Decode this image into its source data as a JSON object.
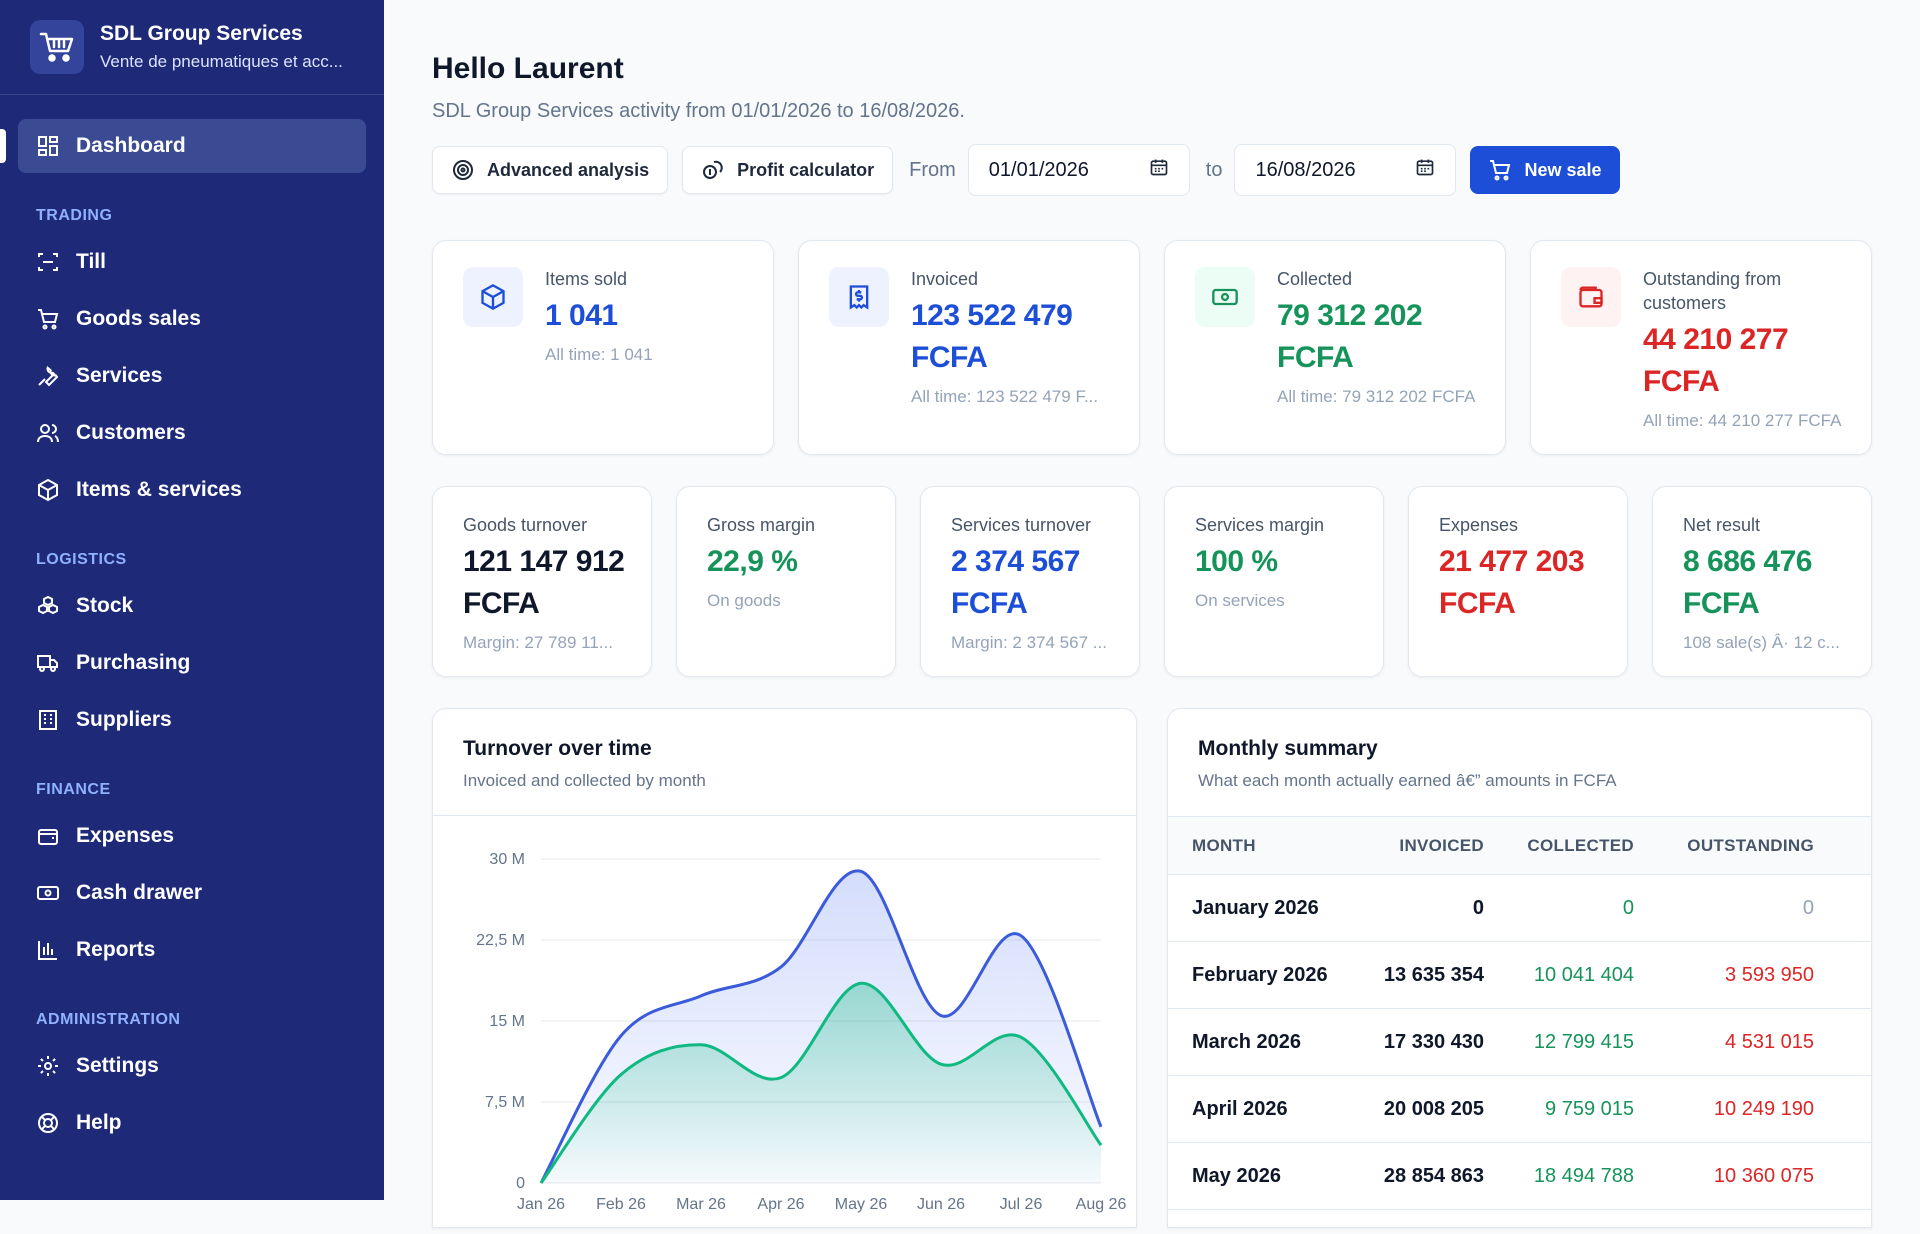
{
  "brand": {
    "name": "SDL Group Services",
    "subtitle": "Vente de pneumatiques et acc..."
  },
  "sidebar": {
    "dashboard": "Dashboard",
    "sections": {
      "trading": "TRADING",
      "logistics": "LOGISTICS",
      "finance": "FINANCE",
      "administration": "ADMINISTRATION"
    },
    "items": {
      "till": "Till",
      "goods_sales": "Goods sales",
      "services": "Services",
      "customers": "Customers",
      "items_services": "Items & services",
      "stock": "Stock",
      "purchasing": "Purchasing",
      "suppliers": "Suppliers",
      "expenses": "Expenses",
      "cash_drawer": "Cash drawer",
      "reports": "Reports",
      "settings": "Settings",
      "help": "Help"
    }
  },
  "header": {
    "greeting": "Hello Laurent",
    "subtitle": "SDL Group Services activity from 01/01/2026 to 16/08/2026."
  },
  "toolbar": {
    "advanced_analysis": "Advanced analysis",
    "profit_calculator": "Profit calculator",
    "from_label": "From",
    "from_date": "01/01/2026",
    "to_label": "to",
    "to_date": "16/08/2026",
    "new_sale": "New sale"
  },
  "kpis": {
    "items_sold": {
      "label": "Items sold",
      "value": "1 041",
      "note": "All time: 1 041"
    },
    "invoiced": {
      "label": "Invoiced",
      "value": "123 522 479",
      "unit": "FCFA",
      "note": "All time: 123 522 479 F..."
    },
    "collected": {
      "label": "Collected",
      "value": "79 312 202",
      "unit": "FCFA",
      "note": "All time: 79 312 202 FCFA"
    },
    "outstanding": {
      "label": "Outstanding from customers",
      "value": "44 210 277",
      "unit": "FCFA",
      "note": "All time: 44 210 277 FCFA"
    }
  },
  "metrics": {
    "goods_turnover": {
      "label": "Goods turnover",
      "value": "121 147 912",
      "unit": "FCFA",
      "note": "Margin: 27 789 11..."
    },
    "gross_margin": {
      "label": "Gross margin",
      "value": "22,9 %",
      "note": "On goods"
    },
    "services_turnover": {
      "label": "Services turnover",
      "value": "2 374 567",
      "unit": "FCFA",
      "note": "Margin: 2 374 567 ..."
    },
    "services_margin": {
      "label": "Services margin",
      "value": "100 %",
      "note": "On services"
    },
    "expenses": {
      "label": "Expenses",
      "value": "21 477 203",
      "unit": "FCFA"
    },
    "net_result": {
      "label": "Net result",
      "value": "8 686 476",
      "unit": "FCFA",
      "note": "108 sale(s) Â· 12 c..."
    }
  },
  "turnover_panel": {
    "title": "Turnover over time",
    "subtitle": "Invoiced and collected by month"
  },
  "chart_data": {
    "type": "area",
    "x": [
      "Jan 26",
      "Feb 26",
      "Mar 26",
      "Apr 26",
      "May 26",
      "Jun 26",
      "Jul 26",
      "Aug 26"
    ],
    "ytick_labels": [
      "0",
      "7,5 M",
      "15 M",
      "22,5 M",
      "30 M"
    ],
    "ylim": [
      0,
      30000000
    ],
    "grid": true,
    "series": [
      {
        "values": [
          0,
          13635354,
          17330430,
          20008205,
          28854863,
          15500000,
          22900000,
          5200000
        ],
        "color": "#3b5bdb"
      },
      {
        "values": [
          0,
          10041404,
          12799415,
          9759015,
          18494788,
          11000000,
          13500000,
          3500000
        ],
        "color": "#10b981"
      }
    ]
  },
  "summary_panel": {
    "title": "Monthly summary",
    "subtitle": "What each month actually earned â€” amounts in FCFA",
    "columns": [
      "MONTH",
      "INVOICED",
      "COLLECTED",
      "OUTSTANDING"
    ],
    "rows": [
      {
        "month": "January 2026",
        "invoiced": "0",
        "collected": "0",
        "outstanding": "0"
      },
      {
        "month": "February 2026",
        "invoiced": "13 635 354",
        "collected": "10 041 404",
        "outstanding": "3 593 950"
      },
      {
        "month": "March 2026",
        "invoiced": "17 330 430",
        "collected": "12 799 415",
        "outstanding": "4 531 015"
      },
      {
        "month": "April 2026",
        "invoiced": "20 008 205",
        "collected": "9 759 015",
        "outstanding": "10 249 190"
      },
      {
        "month": "May 2026",
        "invoiced": "28 854 863",
        "collected": "18 494 788",
        "outstanding": "10 360 075"
      }
    ]
  }
}
